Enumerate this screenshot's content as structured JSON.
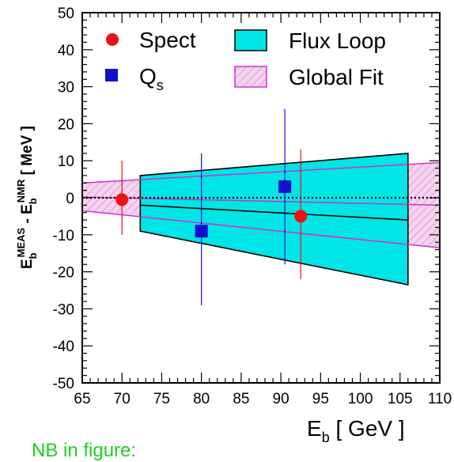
{
  "chart_data": {
    "type": "scatter",
    "title": "",
    "xlabel": "E",
    "xlabel_sub": "b",
    "xlabel_unit": "[ GeV ]",
    "ylabel_parts": {
      "e1": "E",
      "e1_sub": "b",
      "e1_sup": "MEAS",
      "sep": " - ",
      "e2": "E",
      "e2_sub": "b",
      "e2_sup": "NMR",
      "unit": "[ MeV ]"
    },
    "xlim": [
      65,
      110
    ],
    "ylim": [
      -50,
      50
    ],
    "xticks": [
      "65",
      "70",
      "75",
      "80",
      "85",
      "90",
      "95",
      "100",
      "105",
      "110"
    ],
    "yticks": [
      "-50",
      "-40",
      "-30",
      "-20",
      "-10",
      "0",
      "10",
      "20",
      "30",
      "40",
      "50"
    ],
    "grid": false,
    "legend_position": "top",
    "zero_line": true,
    "series": [
      {
        "name": "Spect",
        "marker": "circle",
        "color": "#ee1111",
        "points": [
          {
            "x": 70.0,
            "y": -0.5,
            "ylo": -10,
            "yhi": 10
          },
          {
            "x": 92.5,
            "y": -5.0,
            "ylo": -22,
            "yhi": 13
          }
        ]
      },
      {
        "name": "Q",
        "name_sub": "s",
        "marker": "square",
        "color": "#1111cc",
        "points": [
          {
            "x": 80.0,
            "y": -9.0,
            "ylo": -29,
            "yhi": 12
          },
          {
            "x": 90.5,
            "y": 3.0,
            "ylo": -18,
            "yhi": 24
          }
        ]
      }
    ],
    "bands": [
      {
        "name": "Flux Loop",
        "fill": "#00e5e5",
        "stroke": "#000000",
        "x_start": 72.3,
        "x_end": 106,
        "upper": [
          6,
          12
        ],
        "lower": [
          -9,
          -23.5
        ],
        "center": [
          -2,
          -6
        ]
      },
      {
        "name": "Global Fit",
        "fill": "#f3c9e8",
        "stroke": "#cc33cc",
        "x_start": 65,
        "x_end": 110,
        "upper": [
          4,
          9.5
        ],
        "lower": [
          -3.5,
          -13.5
        ],
        "center": [
          0.2,
          -2
        ]
      }
    ]
  },
  "footer_note": "NB in figure:"
}
